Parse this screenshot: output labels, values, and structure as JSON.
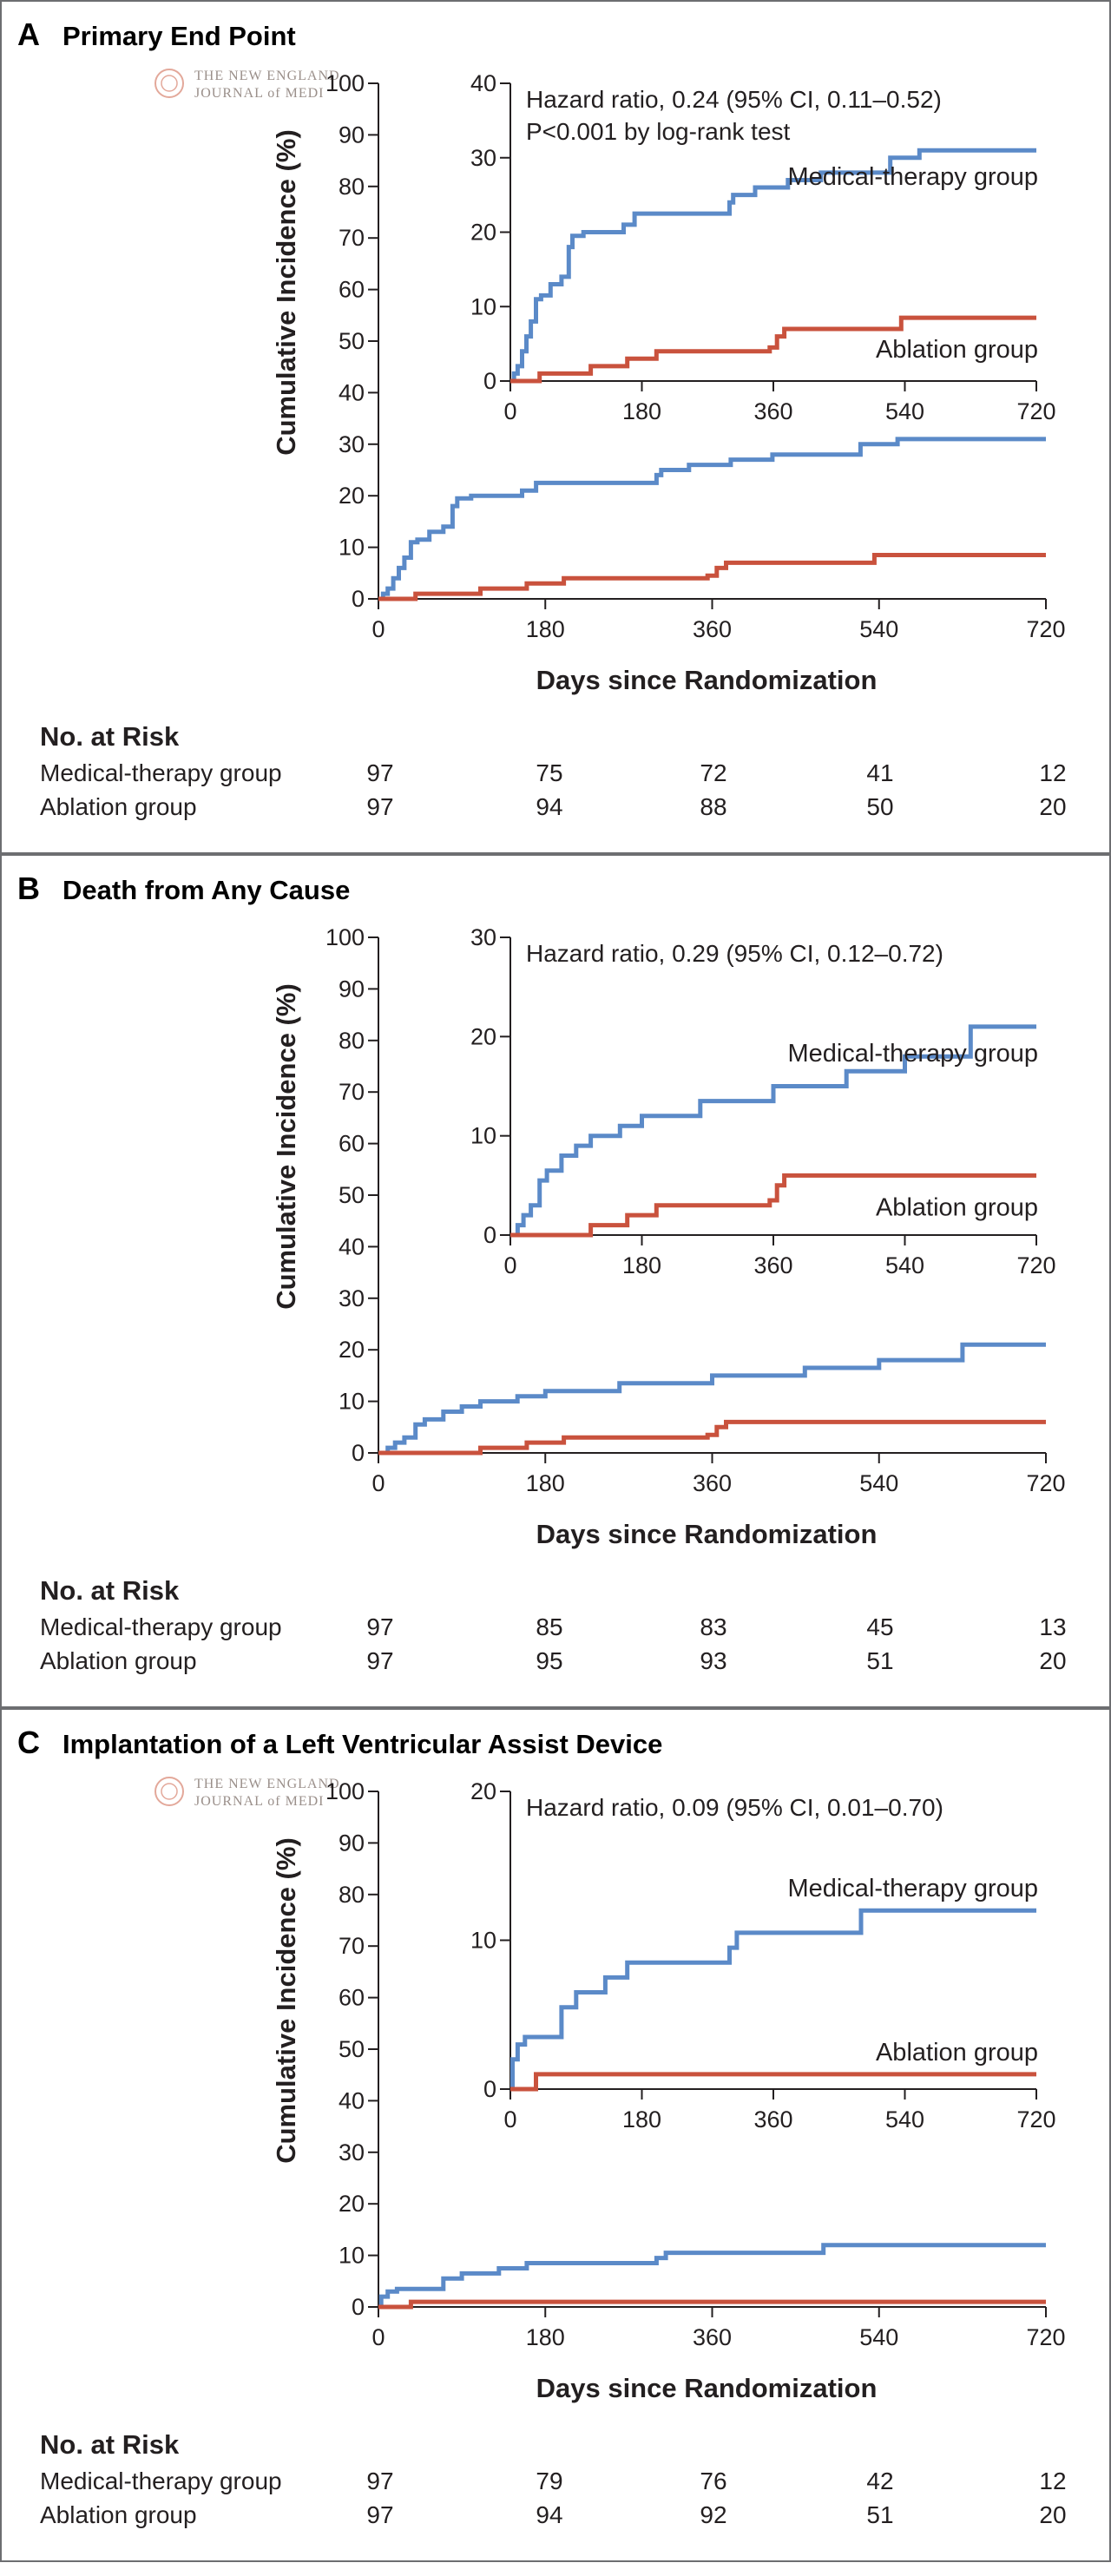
{
  "colors": {
    "medical": "#5b8ac8",
    "ablation": "#c9523d",
    "axis": "#231f20",
    "border": "#6d6e71"
  },
  "watermark": {
    "line1": "THE NEW ENGLAND",
    "line2": "JOURNAL of MEDI",
    "icon": "nejm-seal-icon"
  },
  "chart_data": [
    {
      "type": "line",
      "letter": "A",
      "title": "Primary End Point",
      "xlabel": "Days since Randomization",
      "ylabel": "Cumulative Incidence (%)",
      "xlim": [
        0,
        720
      ],
      "ylim": [
        0,
        100
      ],
      "xticks": [
        0,
        180,
        360,
        540,
        720
      ],
      "yticks": [
        0,
        10,
        20,
        30,
        40,
        50,
        60,
        70,
        80,
        90,
        100
      ],
      "inset": {
        "ylim": [
          0,
          40
        ],
        "yticks": [
          0,
          10,
          20,
          30,
          40
        ],
        "xticks": [
          0,
          180,
          360,
          540,
          720
        ],
        "annotation": [
          "Hazard ratio, 0.24 (95% CI, 0.11–0.52)",
          "P<0.001 by log-rank test"
        ],
        "labels": {
          "medical": "Medical-therapy group",
          "ablation": "Ablation group"
        }
      },
      "series": [
        {
          "name": "Medical-therapy group",
          "colorKey": "medical",
          "x": [
            0,
            5,
            10,
            16,
            22,
            28,
            35,
            42,
            55,
            70,
            80,
            85,
            100,
            155,
            170,
            300,
            305,
            335,
            380,
            425,
            520,
            560,
            720
          ],
          "y": [
            0,
            1,
            2,
            4,
            6,
            8,
            11,
            11.5,
            13,
            14,
            18,
            19.5,
            20,
            21,
            22.5,
            24,
            25,
            26,
            27,
            28,
            30,
            31,
            31
          ]
        },
        {
          "name": "Ablation group",
          "colorKey": "ablation",
          "x": [
            0,
            40,
            110,
            160,
            200,
            355,
            365,
            375,
            535,
            720
          ],
          "y": [
            0,
            1,
            2,
            3,
            4,
            4.5,
            6,
            7,
            8.5,
            8.5
          ]
        }
      ],
      "risk_table": {
        "title": "No. at Risk",
        "rows": [
          {
            "label": "Medical-therapy group",
            "values": [
              "97",
              "75",
              "72",
              "41",
              "12"
            ]
          },
          {
            "label": "Ablation group",
            "values": [
              "97",
              "94",
              "88",
              "50",
              "20"
            ]
          }
        ]
      }
    },
    {
      "type": "line",
      "letter": "B",
      "title": "Death from Any Cause",
      "xlabel": "Days since Randomization",
      "ylabel": "Cumulative Incidence (%)",
      "xlim": [
        0,
        720
      ],
      "ylim": [
        0,
        100
      ],
      "xticks": [
        0,
        180,
        360,
        540,
        720
      ],
      "yticks": [
        0,
        10,
        20,
        30,
        40,
        50,
        60,
        70,
        80,
        90,
        100
      ],
      "inset": {
        "ylim": [
          0,
          30
        ],
        "yticks": [
          0,
          10,
          20,
          30
        ],
        "xticks": [
          0,
          180,
          360,
          540,
          720
        ],
        "annotation": [
          "Hazard ratio, 0.29 (95% CI, 0.12–0.72)"
        ],
        "labels": {
          "medical": "Medical-therapy group",
          "ablation": "Ablation group"
        }
      },
      "series": [
        {
          "name": "Medical-therapy group",
          "colorKey": "medical",
          "x": [
            0,
            10,
            18,
            28,
            40,
            50,
            70,
            90,
            110,
            150,
            180,
            260,
            360,
            460,
            540,
            630,
            720
          ],
          "y": [
            0,
            1,
            2,
            3,
            5.5,
            6.5,
            8,
            9,
            10,
            11,
            12,
            13.5,
            15,
            16.5,
            18,
            21,
            21
          ]
        },
        {
          "name": "Ablation group",
          "colorKey": "ablation",
          "x": [
            0,
            110,
            160,
            200,
            355,
            365,
            375,
            720
          ],
          "y": [
            0,
            1,
            2,
            3,
            3.5,
            5,
            6,
            6
          ]
        }
      ],
      "risk_table": {
        "title": "No. at Risk",
        "rows": [
          {
            "label": "Medical-therapy group",
            "values": [
              "97",
              "85",
              "83",
              "45",
              "13"
            ]
          },
          {
            "label": "Ablation group",
            "values": [
              "97",
              "95",
              "93",
              "51",
              "20"
            ]
          }
        ]
      }
    },
    {
      "type": "line",
      "letter": "C",
      "title": "Implantation of a Left Ventricular Assist Device",
      "xlabel": "Days since Randomization",
      "ylabel": "Cumulative Incidence (%)",
      "xlim": [
        0,
        720
      ],
      "ylim": [
        0,
        100
      ],
      "xticks": [
        0,
        180,
        360,
        540,
        720
      ],
      "yticks": [
        0,
        10,
        20,
        30,
        40,
        50,
        60,
        70,
        80,
        90,
        100
      ],
      "inset": {
        "ylim": [
          0,
          20
        ],
        "yticks": [
          0,
          10,
          20
        ],
        "xticks": [
          0,
          180,
          360,
          540,
          720
        ],
        "annotation": [
          "Hazard ratio, 0.09 (95% CI, 0.01–0.70)"
        ],
        "labels": {
          "medical": "Medical-therapy group",
          "ablation": "Ablation group"
        }
      },
      "series": [
        {
          "name": "Medical-therapy group",
          "colorKey": "medical",
          "x": [
            0,
            3,
            10,
            20,
            70,
            90,
            130,
            160,
            300,
            310,
            480,
            720
          ],
          "y": [
            0,
            2,
            3,
            3.5,
            5.5,
            6.5,
            7.5,
            8.5,
            9.5,
            10.5,
            12,
            12
          ]
        },
        {
          "name": "Ablation group",
          "colorKey": "ablation",
          "x": [
            0,
            35,
            720
          ],
          "y": [
            0,
            1,
            1
          ]
        }
      ],
      "risk_table": {
        "title": "No. at Risk",
        "rows": [
          {
            "label": "Medical-therapy group",
            "values": [
              "97",
              "79",
              "76",
              "42",
              "12"
            ]
          },
          {
            "label": "Ablation group",
            "values": [
              "97",
              "94",
              "92",
              "51",
              "20"
            ]
          }
        ]
      }
    }
  ]
}
